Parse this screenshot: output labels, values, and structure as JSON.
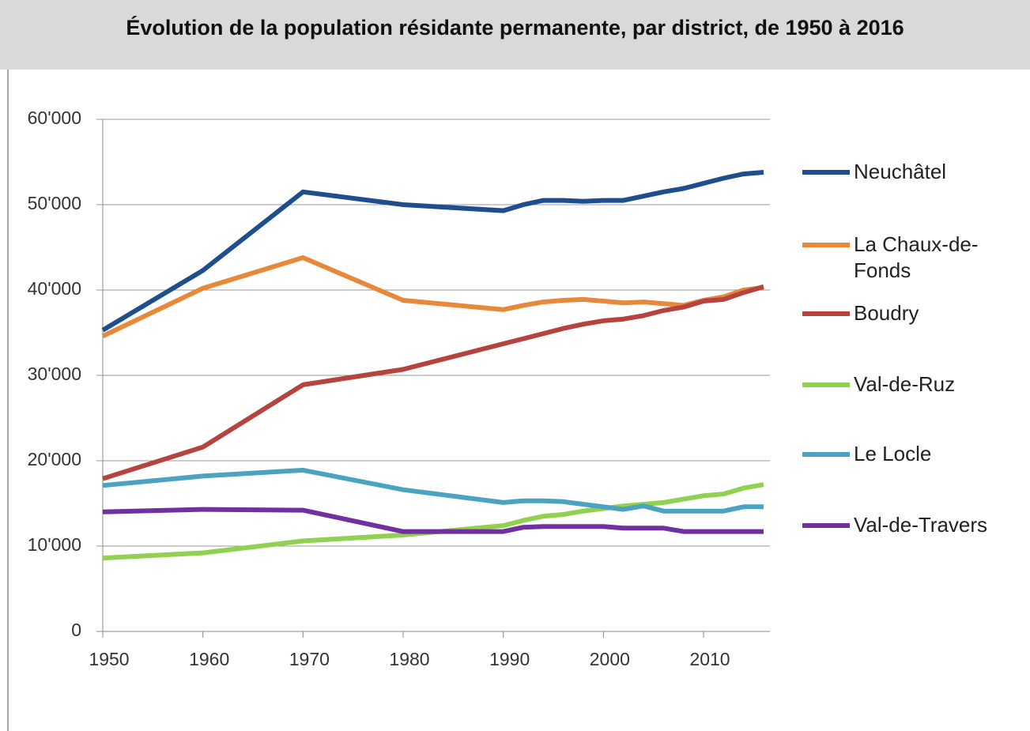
{
  "chart_data": {
    "type": "line",
    "title": "Évolution de la population résidante permanente, par district, de 1950 à 2016",
    "x": [
      1950,
      1960,
      1970,
      1980,
      1990,
      1992,
      1994,
      1996,
      1998,
      2000,
      2002,
      2004,
      2006,
      2008,
      2010,
      2012,
      2014,
      2016
    ],
    "series": [
      {
        "name": "Neuchâtel",
        "color": "#1f4e8c",
        "values": [
          35300,
          42300,
          51500,
          50000,
          49300,
          50000,
          50500,
          50500,
          50400,
          50500,
          50500,
          51000,
          51500,
          51900,
          52500,
          53100,
          53600,
          53800
        ]
      },
      {
        "name": "La Chaux-de-Fonds",
        "color": "#e8883a",
        "values": [
          34600,
          40200,
          43800,
          38800,
          37700,
          38200,
          38600,
          38800,
          38900,
          38700,
          38500,
          38600,
          38400,
          38200,
          38800,
          39200,
          40000,
          40300
        ]
      },
      {
        "name": "Boudry",
        "color": "#b5443f",
        "values": [
          17900,
          21600,
          28900,
          30700,
          33700,
          34300,
          34900,
          35500,
          36000,
          36400,
          36600,
          37000,
          37600,
          38000,
          38700,
          38900,
          39700,
          40400
        ]
      },
      {
        "name": "Val-de-Ruz",
        "color": "#92d050",
        "values": [
          8600,
          9200,
          10600,
          11300,
          12400,
          13000,
          13500,
          13700,
          14100,
          14400,
          14700,
          14900,
          15100,
          15500,
          15900,
          16100,
          16800,
          17200
        ]
      },
      {
        "name": "Le Locle",
        "color": "#4aa3c0",
        "values": [
          17100,
          18200,
          18900,
          16600,
          15100,
          15300,
          15300,
          15200,
          14900,
          14600,
          14300,
          14700,
          14100,
          14100,
          14100,
          14100,
          14600,
          14600
        ]
      },
      {
        "name": "Val-de-Travers",
        "color": "#7030a0",
        "values": [
          14000,
          14300,
          14200,
          11700,
          11700,
          12200,
          12300,
          12300,
          12300,
          12300,
          12100,
          12100,
          12100,
          11700,
          11700,
          11700,
          11700,
          11700
        ]
      }
    ],
    "xlim": [
      1950,
      2017
    ],
    "xticks": [
      1950,
      1960,
      1970,
      1980,
      1990,
      2000,
      2010
    ],
    "ylim": [
      0,
      60000
    ],
    "yticks": [
      0,
      {
        "value": 10000,
        "label": "10'000"
      },
      {
        "value": 20000,
        "label": "20'000"
      },
      {
        "value": 30000,
        "label": "30'000"
      },
      {
        "value": 40000,
        "label": "40'000"
      },
      {
        "value": 50000,
        "label": "50'000"
      },
      {
        "value": 60000,
        "label": "60'000"
      }
    ],
    "grid": true,
    "legend": "right"
  }
}
